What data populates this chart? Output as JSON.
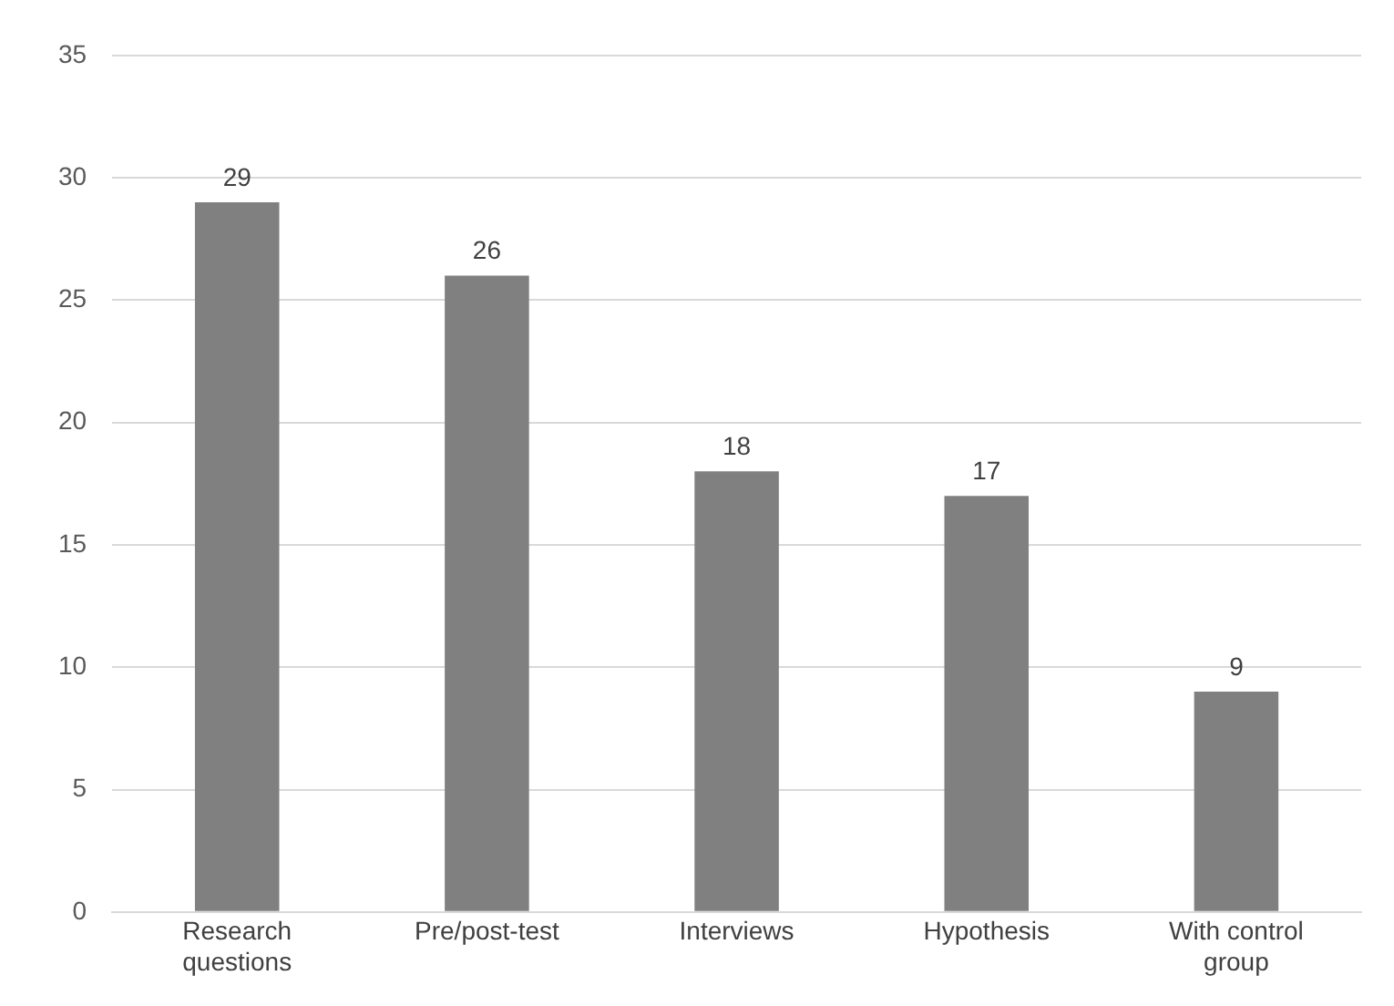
{
  "chart_data": {
    "type": "bar",
    "categories": [
      "Research questions",
      "Pre/post-test",
      "Interviews",
      "Hypothesis",
      "With control group"
    ],
    "values": [
      29,
      26,
      18,
      17,
      9
    ],
    "color": "#808080",
    "ylim": [
      0,
      35
    ],
    "yticks": [
      0,
      5,
      10,
      15,
      20,
      25,
      30,
      35
    ],
    "grid": "y",
    "data_labels": true
  }
}
